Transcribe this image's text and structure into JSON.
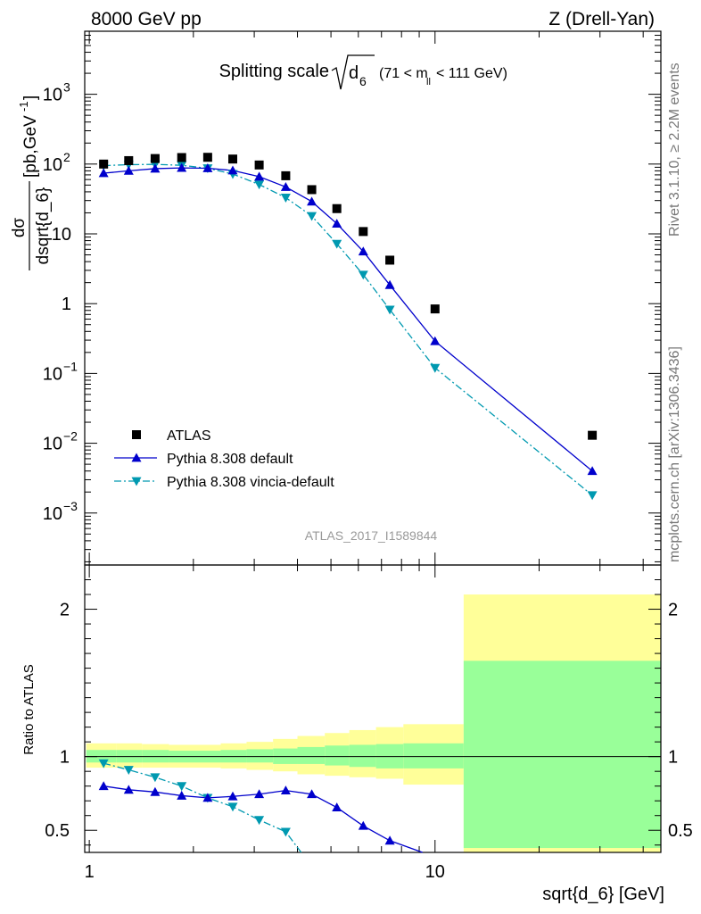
{
  "header": {
    "left": "8000 GeV pp",
    "right": "Z (Drell-Yan)"
  },
  "plot_title": {
    "text": "Splitting scale",
    "sym": "d",
    "sub": "6",
    "range": "(71 < m",
    "range_sub": "ll",
    "range_end": "< 111 GeV)"
  },
  "side_labels": {
    "upper": "Rivet 3.1.10, ≥ 2.2M events",
    "lower": "mcplots.cern.ch [arXiv:1306.3436]"
  },
  "watermark": "ATLAS_2017_I1589844",
  "y_label": {
    "num": "dσ",
    "den": "dsqrt{d_6}",
    "units": "[pb,GeV",
    "units_exp": "-1",
    "units_end": "]"
  },
  "ratio_ylabel": "Ratio to ATLAS",
  "x_label": "sqrt{d_6} [GeV]",
  "ticks": {
    "y_main": [
      {
        "base": "10",
        "exp": "3",
        "value": 1000
      },
      {
        "base": "10",
        "exp": "2",
        "value": 100
      },
      {
        "base": "10",
        "exp": "",
        "value": 10
      },
      {
        "base": "1",
        "exp": "",
        "value": 1
      },
      {
        "base": "10",
        "exp": "−1",
        "value": 0.1
      },
      {
        "base": "10",
        "exp": "−2",
        "value": 0.01
      },
      {
        "base": "10",
        "exp": "−3",
        "value": 0.001
      }
    ],
    "y_ratio": [
      {
        "label": "2",
        "value": 2
      },
      {
        "label": "1",
        "value": 1
      },
      {
        "label": "0.5",
        "value": 0.5
      }
    ],
    "x": [
      {
        "label": "1",
        "value": 1
      },
      {
        "label": "10",
        "value": 10
      }
    ]
  },
  "legend": [
    {
      "label": "ATLAS",
      "key": "data"
    },
    {
      "label": "Pythia 8.308 default",
      "key": "default"
    },
    {
      "label": "Pythia 8.308 vincia-default",
      "key": "vincia"
    }
  ],
  "colors": {
    "data": "#000000",
    "default": "#0000cc",
    "vincia": "#0099b0",
    "band_inner": "#99ff99",
    "band_outer": "#ffff99"
  },
  "chart_data": {
    "type": "scatter",
    "title": "Splitting scale √d6 (71 < m_ll < 111 GeV)",
    "xlabel": "sqrt{d_6} [GeV]",
    "ylabel": "dσ/dsqrt{d_6} [pb,GeV^-1]",
    "xscale": "log",
    "yscale": "log",
    "xlim": [
      0.97,
      45
    ],
    "ylim": [
      0.00018,
      8000
    ],
    "ratio_ylim": [
      0.35,
      2.3
    ],
    "x": [
      1.1,
      1.3,
      1.55,
      1.85,
      2.2,
      2.6,
      3.1,
      3.7,
      4.4,
      5.2,
      6.2,
      7.4,
      10.0,
      28.5
    ],
    "series": [
      {
        "name": "ATLAS",
        "style": "markers",
        "values": [
          100,
          112,
          120,
          124,
          125,
          118,
          97,
          68,
          43,
          23,
          10.8,
          4.2,
          0.84,
          0.013
        ]
      },
      {
        "name": "Pythia 8.308 default",
        "style": "line-triangle-up",
        "values": [
          74,
          80,
          86,
          88,
          87,
          81,
          66,
          47,
          29,
          14,
          5.6,
          1.85,
          0.29,
          0.004
        ]
      },
      {
        "name": "Pythia 8.308 vincia-default",
        "style": "dashdot-triangle-down",
        "values": [
          95,
          98,
          99,
          96,
          87,
          72,
          51,
          33,
          18,
          7.2,
          2.6,
          0.82,
          0.12,
          0.0018
        ]
      }
    ],
    "ratio": {
      "ylabel": "Ratio to ATLAS",
      "x": [
        1.1,
        1.3,
        1.55,
        1.85,
        2.2,
        2.6,
        3.1,
        3.7,
        4.4,
        5.2,
        6.2,
        7.4
      ],
      "default": [
        0.8,
        0.775,
        0.76,
        0.735,
        0.72,
        0.73,
        0.745,
        0.77,
        0.745,
        0.655,
        0.53,
        0.43
      ],
      "default_last": {
        "x": 9.2,
        "y": 0.35
      },
      "vincia": [
        0.955,
        0.91,
        0.86,
        0.8,
        0.72,
        0.66,
        0.57,
        0.49
      ],
      "vincia_last": {
        "x": 4.1,
        "y": 0.35
      }
    },
    "bands": {
      "edges": [
        0.98,
        1.2,
        1.42,
        1.7,
        2.02,
        2.4,
        2.85,
        3.4,
        4.0,
        4.8,
        5.65,
        6.75,
        8.1,
        12.1,
        45
      ],
      "inner": [
        [
          0.96,
          1.045
        ],
        [
          0.96,
          1.045
        ],
        [
          0.96,
          1.045
        ],
        [
          0.96,
          1.04
        ],
        [
          0.96,
          1.04
        ],
        [
          0.96,
          1.045
        ],
        [
          0.96,
          1.05
        ],
        [
          0.95,
          1.055
        ],
        [
          0.95,
          1.065
        ],
        [
          0.94,
          1.075
        ],
        [
          0.93,
          1.08
        ],
        [
          0.92,
          1.085
        ],
        [
          0.92,
          1.09
        ],
        [
          0.38,
          1.65
        ]
      ],
      "outer": [
        [
          0.925,
          1.09
        ],
        [
          0.925,
          1.09
        ],
        [
          0.925,
          1.085
        ],
        [
          0.925,
          1.08
        ],
        [
          0.925,
          1.08
        ],
        [
          0.92,
          1.09
        ],
        [
          0.91,
          1.1
        ],
        [
          0.9,
          1.12
        ],
        [
          0.88,
          1.14
        ],
        [
          0.87,
          1.16
        ],
        [
          0.86,
          1.18
        ],
        [
          0.85,
          1.2
        ],
        [
          0.81,
          1.22
        ],
        [
          0.35,
          2.1
        ]
      ]
    }
  }
}
